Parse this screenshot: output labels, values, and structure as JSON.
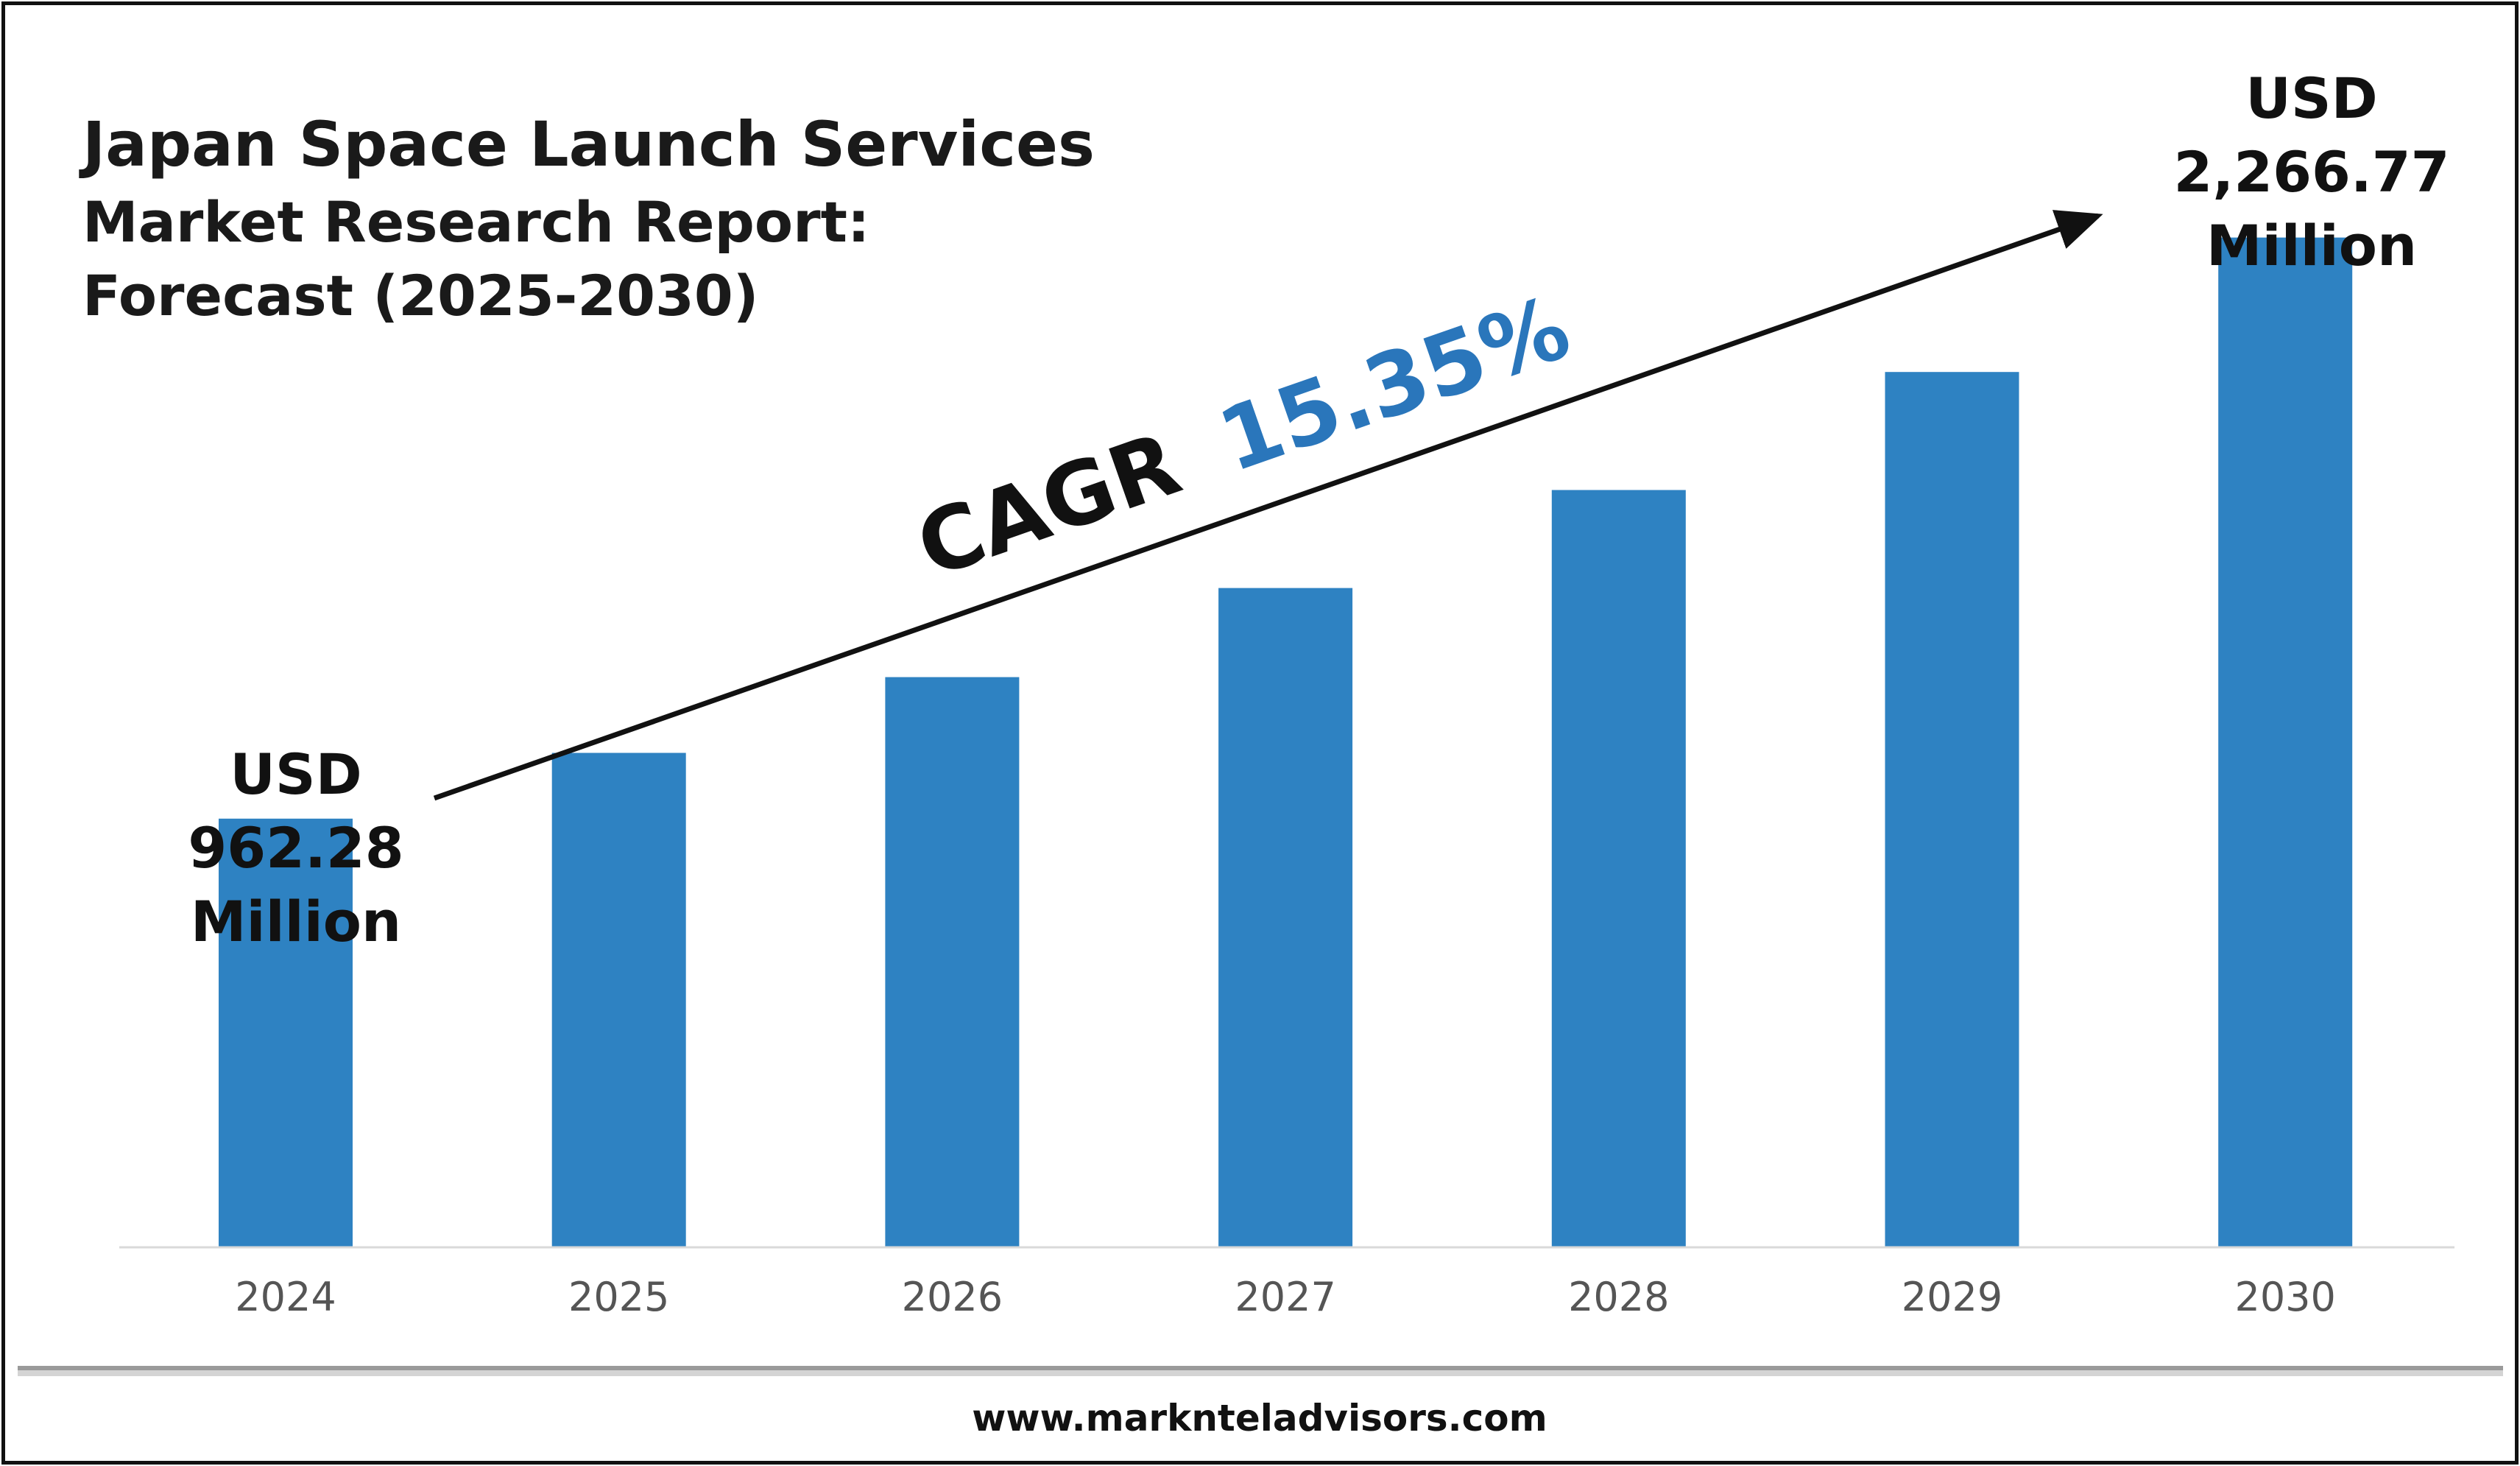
{
  "chart_data": {
    "type": "bar",
    "title": "Japan Space Launch Services",
    "subtitle_lines": [
      "Market Research Report:",
      "Forecast (2025-2030)"
    ],
    "categories": [
      "2024",
      "2025",
      "2026",
      "2027",
      "2028",
      "2029",
      "2030"
    ],
    "values": [
      962.28,
      1110,
      1280,
      1480,
      1700,
      1965,
      2266.77
    ],
    "ylim": [
      0,
      2800
    ],
    "grid": false,
    "annotations": {
      "start": [
        "USD",
        "962.28",
        "Million"
      ],
      "end": [
        "USD",
        "2,266.77",
        "Million"
      ],
      "cagr_label": "CAGR",
      "cagr_value": "15.35%"
    },
    "colors": {
      "bar": "#2e82c2",
      "cagr_value": "#2a76bb"
    }
  },
  "footer": {
    "url": "www.marknteladvisors.com"
  }
}
